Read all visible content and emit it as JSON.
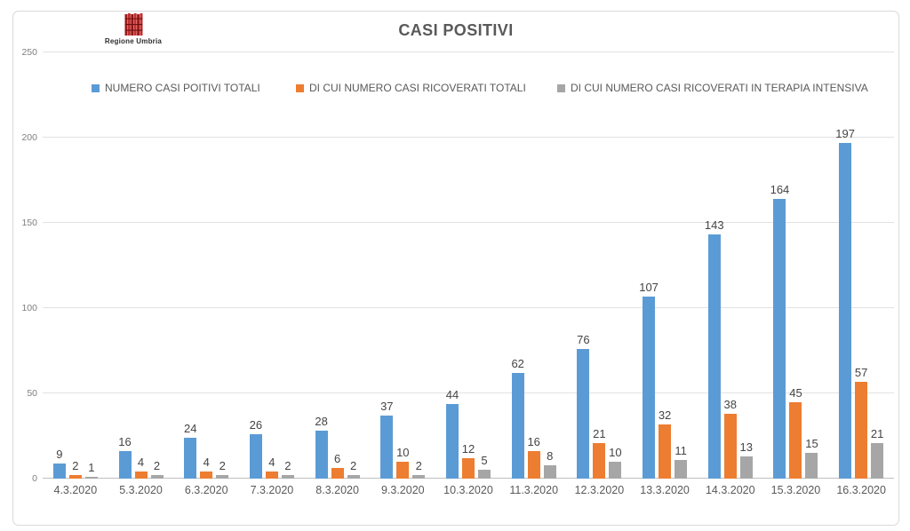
{
  "header": {
    "title": "CASI POSITIVI",
    "logo_text": "Regione Umbria"
  },
  "axes": {
    "yticks": [
      "0",
      "50",
      "100",
      "150",
      "200",
      "250"
    ]
  },
  "chart_data": {
    "type": "bar",
    "title": "CASI POSITIVI",
    "categories": [
      "4.3.2020",
      "5.3.2020",
      "6.3.2020",
      "7.3.2020",
      "8.3.2020",
      "9.3.2020",
      "10.3.2020",
      "11.3.2020",
      "12.3.2020",
      "13.3.2020",
      "14.3.2020",
      "15.3.2020",
      "16.3.2020"
    ],
    "series": [
      {
        "name": "NUMERO CASI POITIVI TOTALI",
        "color": "#5B9BD5",
        "values": [
          9,
          16,
          24,
          26,
          28,
          37,
          44,
          62,
          76,
          107,
          143,
          164,
          197
        ]
      },
      {
        "name": "DI CUI NUMERO CASI RICOVERATI TOTALI",
        "color": "#ED7D31",
        "values": [
          2,
          4,
          4,
          4,
          6,
          10,
          12,
          16,
          21,
          32,
          38,
          45,
          57
        ]
      },
      {
        "name": "DI CUI NUMERO CASI RICOVERATI IN TERAPIA INTENSIVA",
        "color": "#A6A6A6",
        "values": [
          1,
          2,
          2,
          2,
          2,
          2,
          5,
          8,
          10,
          11,
          13,
          15,
          21
        ]
      }
    ],
    "xlabel": "",
    "ylabel": "",
    "ylim": [
      0,
      250
    ],
    "yticks": [
      0,
      50,
      100,
      150,
      200,
      250
    ],
    "grid": true,
    "legend_position": "top",
    "data_labels": true
  }
}
